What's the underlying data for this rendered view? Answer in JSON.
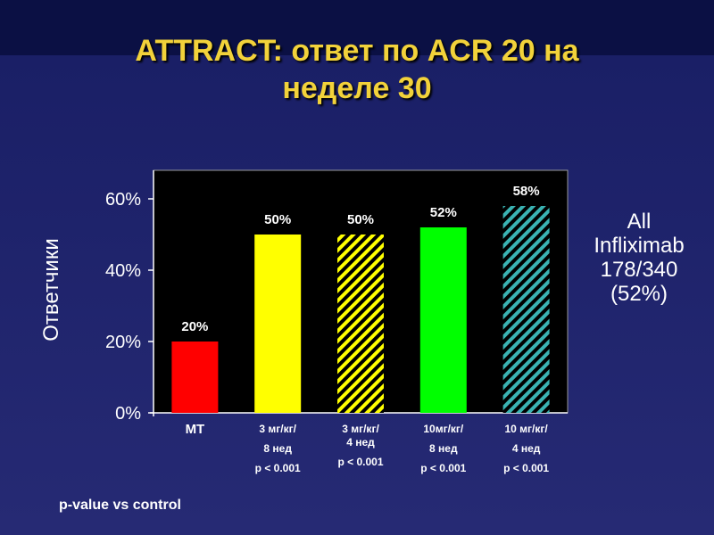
{
  "title_line1": "ATTRACT: ответ по ACR 20 на",
  "title_line2": "неделе 30",
  "ylabel": "Ответчики",
  "side_note": [
    "All",
    "Infliximab",
    "178/340",
    "(52%)"
  ],
  "footnote": "p-value vs control",
  "colors": {
    "title": "#f2d23a",
    "plot_bg": "#000000",
    "mt": "#ff0000",
    "yellow": "#ffff00",
    "green": "#00ff00",
    "teal_hatch": "#3ab3b3"
  },
  "chart_data": {
    "type": "bar",
    "categories": [
      [
        "МТ"
      ],
      [
        "3 мг/кг/",
        "8 нед",
        "p < 0.001"
      ],
      [
        "3 мг/кг/",
        "4 нед",
        "p < 0.001"
      ],
      [
        "10мг/кг/",
        "8 нед",
        "p < 0.001"
      ],
      [
        "10 мг/кг/",
        "4 нед",
        "p < 0.001"
      ]
    ],
    "values": [
      20,
      50,
      50,
      52,
      58
    ],
    "data_labels": [
      "20%",
      "50%",
      "50%",
      "52%",
      "58%"
    ],
    "fills": [
      "solid-red",
      "solid-yellow",
      "hatched-yellow",
      "solid-green",
      "hatched-teal"
    ],
    "yticks": [
      "0%",
      "20%",
      "40%",
      "60%"
    ],
    "ylim": [
      0,
      68
    ],
    "ylabel": "Ответчики"
  }
}
